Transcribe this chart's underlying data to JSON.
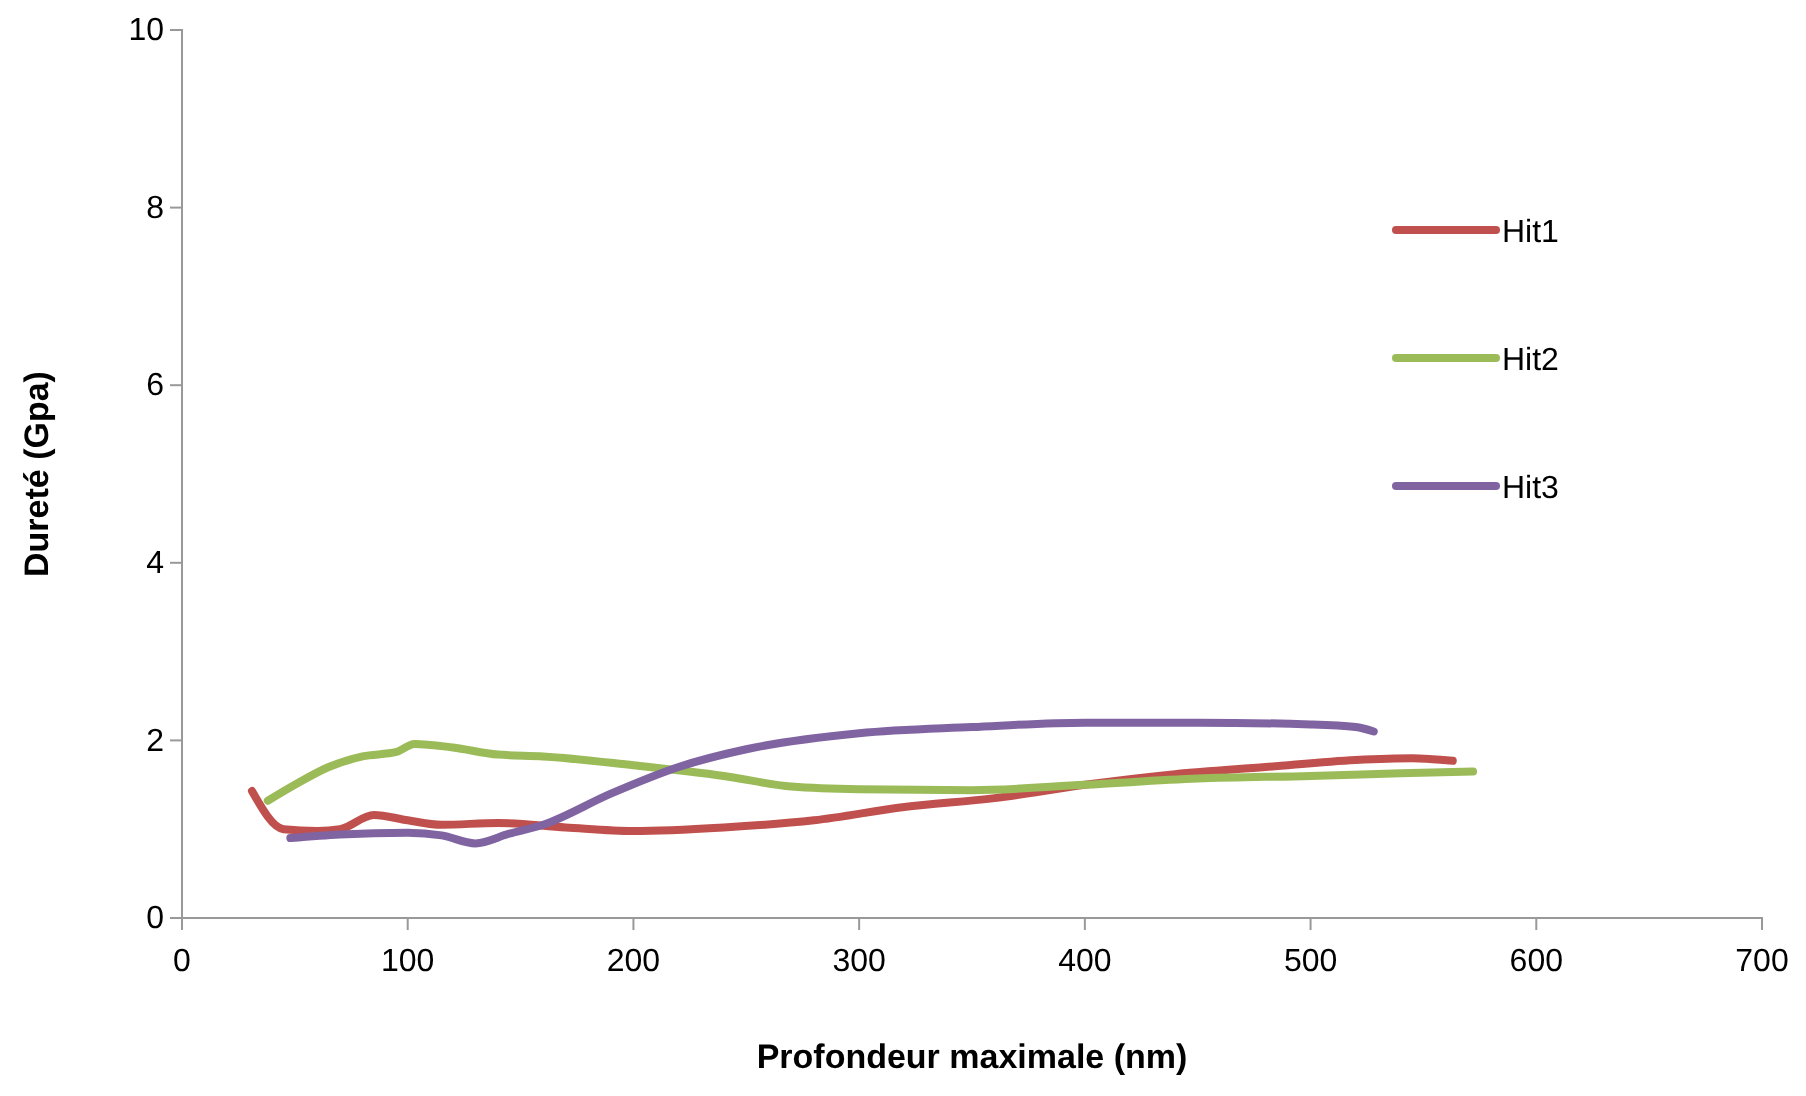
{
  "chart_data": {
    "type": "line",
    "xlabel": "Profondeur maximale (nm)",
    "ylabel": "Dureté (Gpa)",
    "xlim": [
      0,
      700
    ],
    "xticks": [
      0,
      100,
      200,
      300,
      400,
      500,
      600,
      700
    ],
    "ylim": [
      0,
      10
    ],
    "yticks": [
      0,
      2,
      4,
      6,
      8,
      10
    ],
    "grid": false,
    "legend": "right",
    "marker": "none",
    "line_style": "solid",
    "series": [
      {
        "name": "Hit1",
        "color": "#c0504d",
        "x": [
          31,
          45,
          60,
          70,
          85,
          100,
          115,
          140,
          170,
          200,
          240,
          280,
          320,
          360,
          400,
          440,
          480,
          520,
          545,
          563
        ],
        "values": [
          1.43,
          1.0,
          0.98,
          1.0,
          1.16,
          1.1,
          1.05,
          1.07,
          1.02,
          0.98,
          1.02,
          1.1,
          1.25,
          1.35,
          1.5,
          1.62,
          1.7,
          1.78,
          1.8,
          1.77
        ]
      },
      {
        "name": "Hit2",
        "color": "#9bbb59",
        "x": [
          38,
          50,
          65,
          80,
          95,
          103,
          120,
          140,
          160,
          200,
          240,
          270,
          300,
          350,
          400,
          450,
          500,
          540,
          572
        ],
        "values": [
          1.32,
          1.5,
          1.7,
          1.82,
          1.87,
          1.96,
          1.92,
          1.84,
          1.82,
          1.72,
          1.6,
          1.48,
          1.45,
          1.44,
          1.5,
          1.57,
          1.6,
          1.63,
          1.65
        ]
      },
      {
        "name": "Hit3",
        "color": "#8064a2",
        "x": [
          48,
          70,
          100,
          115,
          130,
          145,
          160,
          190,
          220,
          250,
          300,
          350,
          400,
          450,
          500,
          520,
          528
        ],
        "values": [
          0.9,
          0.94,
          0.96,
          0.93,
          0.84,
          0.95,
          1.05,
          1.4,
          1.7,
          1.9,
          2.08,
          2.15,
          2.2,
          2.2,
          2.18,
          2.15,
          2.1
        ]
      }
    ]
  }
}
